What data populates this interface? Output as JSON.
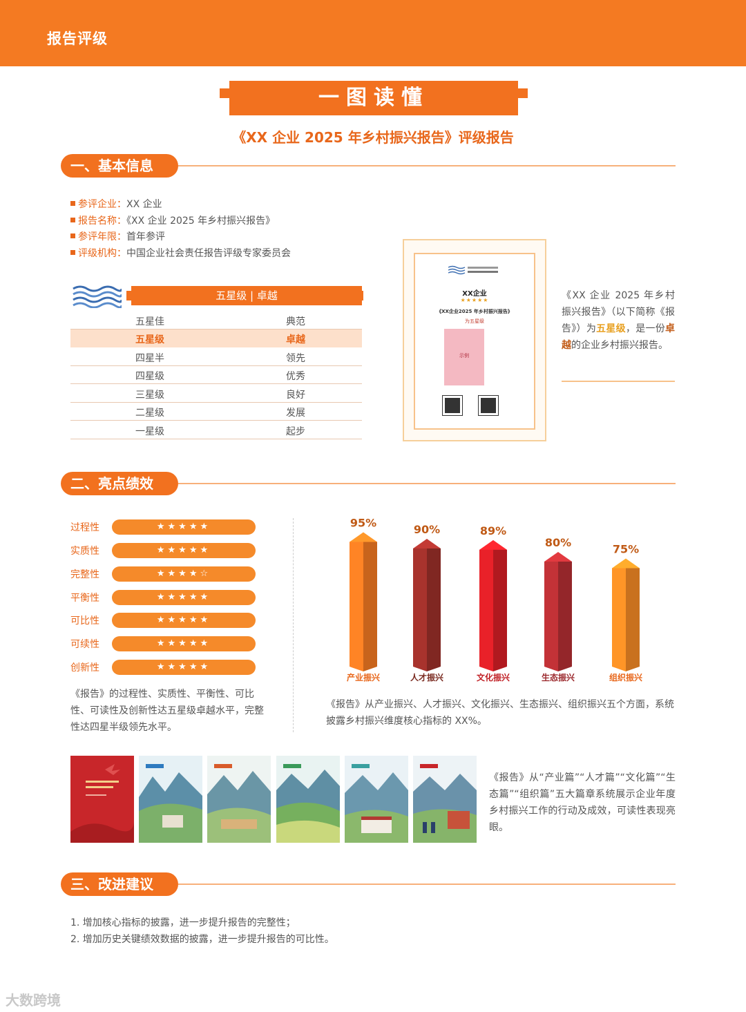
{
  "header": {
    "title": "报告评级"
  },
  "banner": {
    "title": "一图读懂"
  },
  "subtitle": "《XX 企业 2025 年乡村振兴报告》评级报告",
  "sections": {
    "basic": "一、基本信息",
    "highlights": "二、亮点绩效",
    "suggestions": "三、改进建议"
  },
  "basic_info": [
    {
      "key": "参评企业：",
      "value": "XX 企业"
    },
    {
      "key": "报告名称：",
      "value": "《XX 企业 2025 年乡村振兴报告》"
    },
    {
      "key": "参评年限：",
      "value": "首年参评"
    },
    {
      "key": "评级机构：",
      "value": "中国企业社会责任报告评级专家委员会"
    }
  ],
  "grade": {
    "header": "五星级 | 卓越",
    "rows": [
      {
        "level": "五星佳",
        "desc": "典范"
      },
      {
        "level": "五星级",
        "desc": "卓越"
      },
      {
        "level": "四星半",
        "desc": "领先"
      },
      {
        "level": "四星级",
        "desc": "优秀"
      },
      {
        "level": "三星级",
        "desc": "良好"
      },
      {
        "level": "二星级",
        "desc": "发展"
      },
      {
        "level": "一星级",
        "desc": "起步"
      }
    ],
    "highlight_index": 1
  },
  "certificate": {
    "name": "XX企业",
    "stars": "★★★★★",
    "report": "《XX企业2025 年乡村振兴报告》",
    "level_text": "为五星级",
    "book_text": "示例"
  },
  "certificate_desc": {
    "part1": "《XX 企业 2025 年乡村振兴报告》（以下简称《报告》）为",
    "level": "五星级",
    "part2": "，是一份",
    "rating": "卓越",
    "part3": "的企业乡村振兴报告。"
  },
  "metrics": [
    {
      "label": "过程性",
      "stars": "★★★★★"
    },
    {
      "label": "实质性",
      "stars": "★★★★★"
    },
    {
      "label": "完整性",
      "stars": "★★★★☆"
    },
    {
      "label": "平衡性",
      "stars": "★★★★★"
    },
    {
      "label": "可比性",
      "stars": "★★★★★"
    },
    {
      "label": "可续性",
      "stars": "★★★★★"
    },
    {
      "label": "创新性",
      "stars": "★★★★★"
    }
  ],
  "metrics_desc": "《报告》的过程性、实质性、平衡性、可比性、可读性及创新性达五星级卓越水平，完整性达四星半级领先水平。",
  "chart_data": {
    "type": "bar",
    "categories": [
      "产业振兴",
      "人才振兴",
      "文化振兴",
      "生态振兴",
      "组织振兴"
    ],
    "values": [
      95,
      90,
      89,
      80,
      75
    ],
    "labels": [
      "95%",
      "90%",
      "89%",
      "80%",
      "75%"
    ],
    "colors": [
      "#f47a22",
      "#9c2f2a",
      "#d81f26",
      "#b52e33",
      "#f58a24"
    ],
    "label_colors": [
      "#e8671b",
      "#7a2a20",
      "#c01f24",
      "#9c2a2e",
      "#e8671b"
    ]
  },
  "chart_desc": "《报告》从产业振兴、人才振兴、文化振兴、生态振兴、组织振兴五个方面，系统披露乡村振兴维度核心指标的 XX%。",
  "pages_desc": "《报告》从“产业篇”“人才篇”“文化篇”“生态篇”“组织篇”五大篇章系统展示企业年度乡村振兴工作的行动及成效，可读性表现亮眼。",
  "suggestions": [
    "1. 增加核心指标的披露，进一步提升报告的完整性；",
    "2. 增加历史关键绩效数据的披露，进一步提升报告的可比性。"
  ],
  "watermark": "大数跨境"
}
